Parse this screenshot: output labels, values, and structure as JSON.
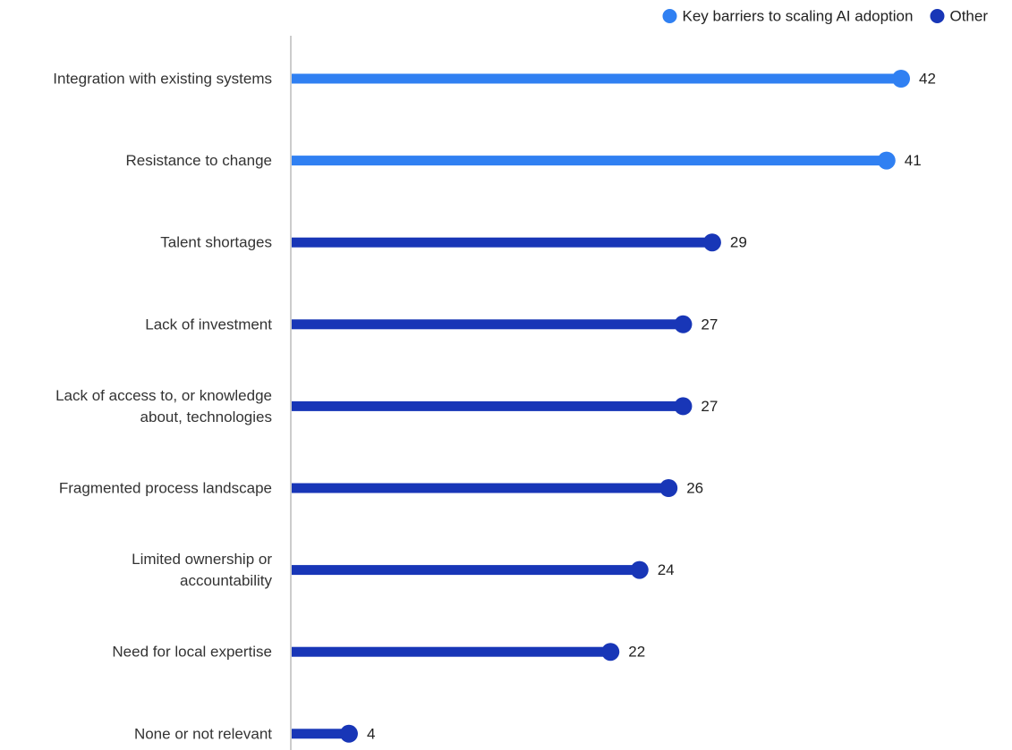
{
  "chart_data": {
    "type": "bar",
    "orientation": "horizontal",
    "style": "lollipop",
    "legend": {
      "position": "top-right",
      "entries": [
        {
          "name": "Key barriers to scaling AI adoption",
          "color": "#3080f2"
        },
        {
          "name": "Other",
          "color": "#1836b7"
        }
      ]
    },
    "categories": [
      [
        "Integration with existing systems"
      ],
      [
        "Resistance to change"
      ],
      [
        "Talent shortages"
      ],
      [
        "Lack of investment"
      ],
      [
        "Lack of access to, or knowledge",
        "about, technologies"
      ],
      [
        "Fragmented process landscape"
      ],
      [
        "Limited ownership or",
        "accountability"
      ],
      [
        "Need for local expertise"
      ],
      [
        "None or not relevant"
      ]
    ],
    "values": [
      42,
      41,
      29,
      27,
      27,
      26,
      24,
      22,
      4
    ],
    "value_labels": [
      "42",
      "41",
      "29",
      "27",
      "27",
      "26",
      "24",
      "22",
      "4"
    ],
    "group": [
      "Key barriers to scaling AI adoption",
      "Key barriers to scaling AI adoption",
      "Other",
      "Other",
      "Other",
      "Other",
      "Other",
      "Other",
      "Other"
    ],
    "xlim": [
      0,
      42
    ],
    "grid": false,
    "title": "",
    "xlabel": "",
    "ylabel": ""
  }
}
